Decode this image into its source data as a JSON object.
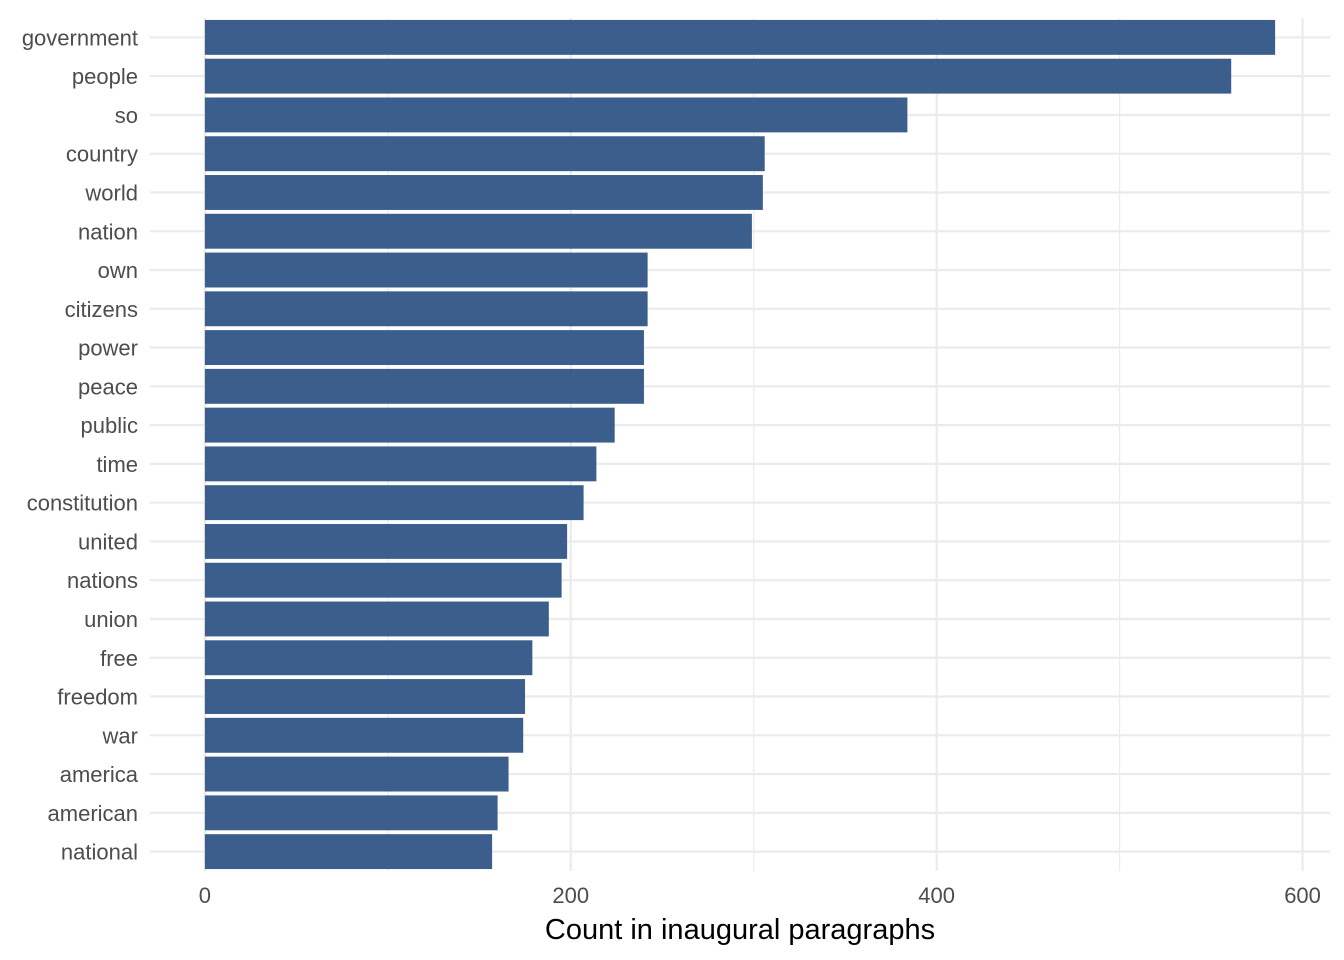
{
  "chart_data": {
    "type": "bar",
    "orientation": "horizontal",
    "categories": [
      "government",
      "people",
      "so",
      "country",
      "world",
      "nation",
      "own",
      "citizens",
      "power",
      "peace",
      "public",
      "time",
      "constitution",
      "united",
      "nations",
      "union",
      "free",
      "freedom",
      "war",
      "america",
      "american",
      "national"
    ],
    "values": [
      585,
      561,
      384,
      306,
      305,
      299,
      242,
      242,
      240,
      240,
      224,
      214,
      207,
      198,
      195,
      188,
      179,
      175,
      174,
      166,
      160,
      157
    ],
    "xlabel": "Count in inaugural paragraphs",
    "ylabel": "",
    "xlim": [
      -30,
      615
    ],
    "xticks": [
      0,
      200,
      400,
      600
    ],
    "grid": true,
    "bar_color": "#3b5e8c",
    "grid_color": "#ebebeb",
    "legend": "none"
  }
}
